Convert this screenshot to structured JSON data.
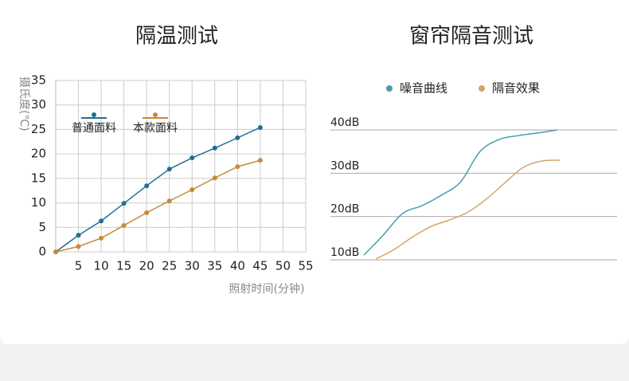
{
  "chart_data": [
    {
      "type": "line",
      "title": "隔温测试",
      "ylabel": "摄氏度(℃)",
      "xlabel": "照射时间(分钟)",
      "x": [
        0,
        5,
        10,
        15,
        20,
        25,
        30,
        35,
        40,
        45,
        50
      ],
      "series": [
        {
          "name": "普通面料",
          "color": "#1f6f94",
          "values": [
            0,
            3.4,
            6.3,
            9.9,
            13.5,
            16.9,
            19.2,
            21.2,
            23.3,
            25.4,
            null
          ]
        },
        {
          "name": "本款面料",
          "color": "#c8893a",
          "values": [
            0,
            1.1,
            2.8,
            5.4,
            8.0,
            10.4,
            12.7,
            15.1,
            17.4,
            18.7,
            null
          ]
        }
      ],
      "xlim": [
        0,
        55
      ],
      "xticks": [
        5,
        10,
        15,
        20,
        25,
        30,
        35,
        40,
        45,
        50,
        55
      ],
      "ylim": [
        0,
        35
      ],
      "yticks": [
        0,
        5,
        10,
        15,
        20,
        25,
        30,
        35
      ],
      "grid": true
    },
    {
      "type": "curve",
      "title": "窗帘隔音测试",
      "series": [
        {
          "name": "噪音曲线",
          "color": "#4a9bb0",
          "values": [
            11.1,
            15.7,
            20.7,
            22.5,
            24.9,
            28.0,
            35.0,
            37.8,
            38.7,
            39.3,
            40.0
          ]
        },
        {
          "name": "隔音效果",
          "color": "#d4a46a",
          "values": [
            10.2,
            12.4,
            15.3,
            17.7,
            19.2,
            21.0,
            24.0,
            27.7,
            31.3,
            32.8,
            33.0
          ]
        }
      ],
      "ylim": [
        10,
        40
      ],
      "yticks": [
        {
          "value": 40,
          "label": "40dB"
        },
        {
          "value": 30,
          "label": "30dB"
        },
        {
          "value": 20,
          "label": "20dB"
        },
        {
          "value": 10,
          "label": "10dB"
        }
      ],
      "grid": true
    }
  ]
}
